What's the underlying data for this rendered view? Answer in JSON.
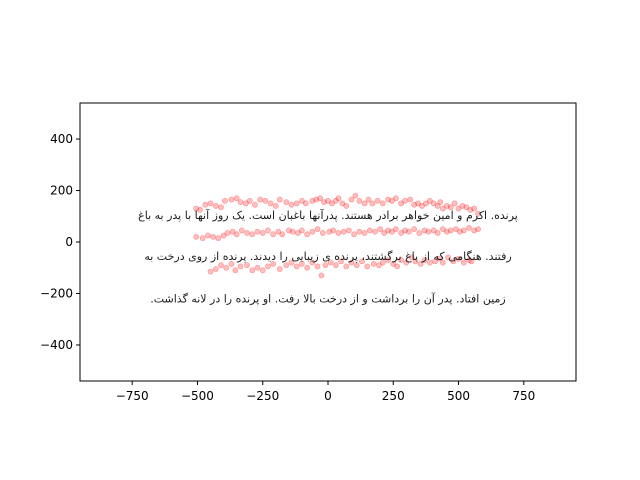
{
  "chart_data": {
    "type": "scatter",
    "title": "",
    "xlabel": "",
    "ylabel": "",
    "xlim": [
      -950,
      950
    ],
    "ylim": [
      -540,
      540
    ],
    "x_ticks": [
      -750,
      -500,
      -250,
      0,
      250,
      500,
      750
    ],
    "y_ticks": [
      -400,
      -200,
      0,
      200,
      400
    ],
    "x_tick_labels": [
      "−750",
      "−500",
      "−250",
      "0",
      "250",
      "500",
      "750"
    ],
    "y_tick_labels": [
      "−400",
      "−200",
      "0",
      "200",
      "400"
    ],
    "grid": false,
    "marker_color": "#ff0000",
    "marker_alpha": 0.25,
    "text_lines": [
      {
        "text": "پرنده. اکرم و امین خواهر برادر هستند. پدرآنها باغبان است. یک روز آنها با پدر به باغ",
        "x": 0,
        "y": 105
      },
      {
        "text": "رفتند. هنگامی که از باغ برگشتند، پرنده ی زیبایی را دیدند. پرنده از روی درخت به",
        "x": 0,
        "y": -55
      },
      {
        "text": "زمین افتاد. پدر آن را برداشت و از درخت بالا رفت. او پرنده را در لانه گذاشت.",
        "x": 0,
        "y": -220
      }
    ],
    "series": [
      {
        "points": [
          [
            -505,
            130
          ],
          [
            -490,
            125
          ],
          [
            -470,
            145
          ],
          [
            -450,
            150
          ],
          [
            -430,
            140
          ],
          [
            -410,
            135
          ],
          [
            -395,
            160
          ],
          [
            -370,
            165
          ],
          [
            -350,
            170
          ],
          [
            -335,
            155
          ],
          [
            -315,
            150
          ],
          [
            -300,
            160
          ],
          [
            -280,
            145
          ],
          [
            -260,
            165
          ],
          [
            -240,
            160
          ],
          [
            -220,
            150
          ],
          [
            -200,
            140
          ],
          [
            -185,
            165
          ],
          [
            -160,
            155
          ],
          [
            -140,
            145
          ],
          [
            -120,
            150
          ],
          [
            -100,
            160
          ],
          [
            -85,
            150
          ],
          [
            -60,
            160
          ],
          [
            -45,
            165
          ],
          [
            -30,
            170
          ],
          [
            -15,
            155
          ],
          [
            0,
            160
          ],
          [
            15,
            150
          ],
          [
            30,
            160
          ],
          [
            40,
            170
          ],
          [
            55,
            150
          ],
          [
            70,
            140
          ],
          [
            90,
            165
          ],
          [
            105,
            180
          ],
          [
            120,
            160
          ],
          [
            140,
            150
          ],
          [
            155,
            165
          ],
          [
            170,
            150
          ],
          [
            190,
            160
          ],
          [
            210,
            150
          ],
          [
            230,
            165
          ],
          [
            245,
            160
          ],
          [
            260,
            170
          ],
          [
            280,
            150
          ],
          [
            295,
            160
          ],
          [
            315,
            165
          ],
          [
            330,
            145
          ],
          [
            345,
            150
          ],
          [
            360,
            140
          ],
          [
            375,
            150
          ],
          [
            390,
            160
          ],
          [
            405,
            150
          ],
          [
            420,
            140
          ],
          [
            430,
            155
          ],
          [
            440,
            130
          ],
          [
            455,
            140
          ],
          [
            470,
            135
          ],
          [
            485,
            150
          ],
          [
            500,
            130
          ],
          [
            515,
            140
          ],
          [
            530,
            135
          ],
          [
            545,
            125
          ],
          [
            560,
            130
          ],
          [
            575,
            110
          ],
          [
            -505,
            20
          ],
          [
            -480,
            15
          ],
          [
            -460,
            25
          ],
          [
            -440,
            20
          ],
          [
            -420,
            15
          ],
          [
            -400,
            25
          ],
          [
            -385,
            35
          ],
          [
            -365,
            40
          ],
          [
            -350,
            30
          ],
          [
            -330,
            45
          ],
          [
            -310,
            35
          ],
          [
            -290,
            30
          ],
          [
            -270,
            40
          ],
          [
            -250,
            35
          ],
          [
            -230,
            45
          ],
          [
            -210,
            30
          ],
          [
            -190,
            40
          ],
          [
            -175,
            30
          ],
          [
            -150,
            45
          ],
          [
            -135,
            40
          ],
          [
            -115,
            35
          ],
          [
            -100,
            45
          ],
          [
            -80,
            30
          ],
          [
            -60,
            40
          ],
          [
            -40,
            50
          ],
          [
            -20,
            35
          ],
          [
            5,
            40
          ],
          [
            20,
            45
          ],
          [
            40,
            35
          ],
          [
            60,
            40
          ],
          [
            80,
            45
          ],
          [
            100,
            30
          ],
          [
            120,
            40
          ],
          [
            140,
            35
          ],
          [
            160,
            45
          ],
          [
            180,
            40
          ],
          [
            200,
            50
          ],
          [
            215,
            35
          ],
          [
            230,
            45
          ],
          [
            245,
            40
          ],
          [
            260,
            50
          ],
          [
            280,
            35
          ],
          [
            295,
            45
          ],
          [
            310,
            40
          ],
          [
            330,
            50
          ],
          [
            350,
            35
          ],
          [
            370,
            45
          ],
          [
            385,
            40
          ],
          [
            405,
            45
          ],
          [
            420,
            35
          ],
          [
            440,
            50
          ],
          [
            455,
            40
          ],
          [
            470,
            45
          ],
          [
            490,
            50
          ],
          [
            505,
            40
          ],
          [
            520,
            45
          ],
          [
            540,
            55
          ],
          [
            560,
            45
          ],
          [
            575,
            50
          ],
          [
            -450,
            -115
          ],
          [
            -430,
            -105
          ],
          [
            -410,
            -90
          ],
          [
            -390,
            -100
          ],
          [
            -370,
            -85
          ],
          [
            -355,
            -110
          ],
          [
            -335,
            -95
          ],
          [
            -310,
            -90
          ],
          [
            -290,
            -110
          ],
          [
            -270,
            -100
          ],
          [
            -250,
            -110
          ],
          [
            -230,
            -95
          ],
          [
            -210,
            -85
          ],
          [
            -185,
            -105
          ],
          [
            -160,
            -90
          ],
          [
            -140,
            -80
          ],
          [
            -120,
            -95
          ],
          [
            -100,
            -85
          ],
          [
            -80,
            -100
          ],
          [
            -60,
            -80
          ],
          [
            -40,
            -95
          ],
          [
            -25,
            -130
          ],
          [
            -10,
            -90
          ],
          [
            10,
            -80
          ],
          [
            30,
            -90
          ],
          [
            50,
            -75
          ],
          [
            70,
            -95
          ],
          [
            90,
            -80
          ],
          [
            110,
            -90
          ],
          [
            130,
            -75
          ],
          [
            150,
            -95
          ],
          [
            175,
            -85
          ],
          [
            195,
            -90
          ],
          [
            210,
            -80
          ],
          [
            230,
            -70
          ],
          [
            250,
            -85
          ],
          [
            265,
            -95
          ],
          [
            280,
            -70
          ],
          [
            300,
            -80
          ],
          [
            320,
            -60
          ],
          [
            335,
            -75
          ],
          [
            355,
            -85
          ],
          [
            370,
            -70
          ],
          [
            390,
            -80
          ],
          [
            410,
            -75
          ],
          [
            425,
            -65
          ],
          [
            440,
            -80
          ],
          [
            460,
            -60
          ],
          [
            480,
            -75
          ],
          [
            500,
            -65
          ],
          [
            520,
            -80
          ],
          [
            540,
            -70
          ],
          [
            550,
            -75
          ]
        ]
      }
    ]
  }
}
